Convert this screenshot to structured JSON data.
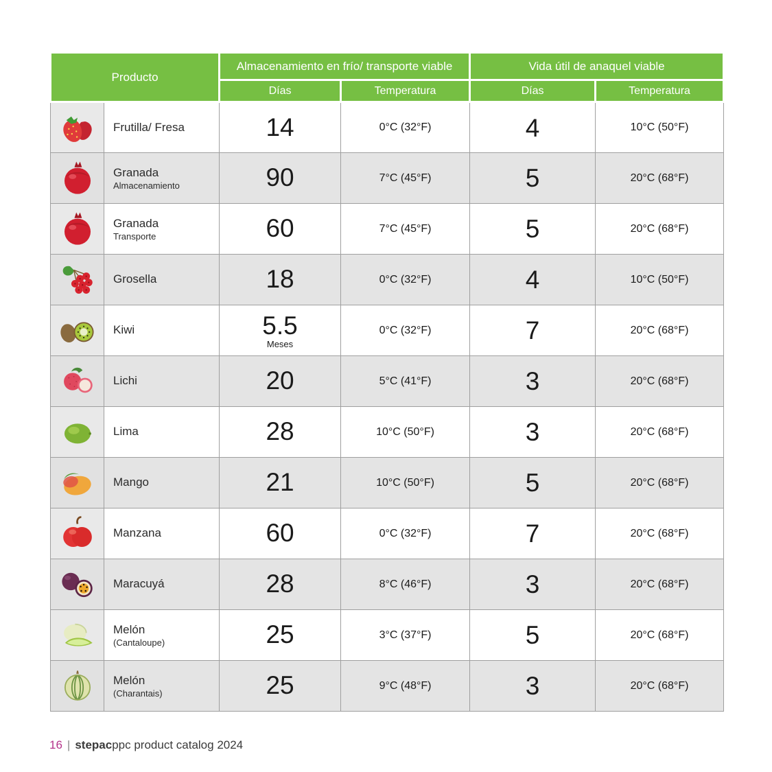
{
  "colors": {
    "header_green": "#76bf43",
    "row_alt_gray": "#e4e4e4",
    "image_cell_gray": "#e9e9e9",
    "footer_accent": "#b5338a"
  },
  "table": {
    "headers": {
      "product": "Producto",
      "storage_group": "Almacenamiento en frío/ transporte viable",
      "shelf_group": "Vida útil de anaquel viable",
      "days": "Días",
      "temperature": "Temperatura"
    },
    "rows": [
      {
        "icon": "strawberry-icon",
        "name": "Frutilla/ Fresa",
        "subname": "",
        "storage_days": "14",
        "storage_days_unit": "",
        "storage_temp": "0°C (32°F)",
        "shelf_days": "4",
        "shelf_temp": "10°C (50°F)"
      },
      {
        "icon": "pomegranate-icon",
        "name": "Granada",
        "subname": "Almacenamiento",
        "storage_days": "90",
        "storage_days_unit": "",
        "storage_temp": "7°C (45°F)",
        "shelf_days": "5",
        "shelf_temp": "20°C (68°F)"
      },
      {
        "icon": "pomegranate-icon",
        "name": "Granada",
        "subname": "Transporte",
        "storage_days": "60",
        "storage_days_unit": "",
        "storage_temp": "7°C (45°F)",
        "shelf_days": "5",
        "shelf_temp": "20°C (68°F)"
      },
      {
        "icon": "currant-icon",
        "name": "Grosella",
        "subname": "",
        "storage_days": "18",
        "storage_days_unit": "",
        "storage_temp": "0°C (32°F)",
        "shelf_days": "4",
        "shelf_temp": "10°C (50°F)"
      },
      {
        "icon": "kiwi-icon",
        "name": "Kiwi",
        "subname": "",
        "storage_days": "5.5",
        "storage_days_unit": "Meses",
        "storage_temp": "0°C (32°F)",
        "shelf_days": "7",
        "shelf_temp": "20°C (68°F)"
      },
      {
        "icon": "lychee-icon",
        "name": "Lichi",
        "subname": "",
        "storage_days": "20",
        "storage_days_unit": "",
        "storage_temp": "5°C (41°F)",
        "shelf_days": "3",
        "shelf_temp": "20°C (68°F)"
      },
      {
        "icon": "lime-icon",
        "name": "Lima",
        "subname": "",
        "storage_days": "28",
        "storage_days_unit": "",
        "storage_temp": "10°C (50°F)",
        "shelf_days": "3",
        "shelf_temp": "20°C (68°F)"
      },
      {
        "icon": "mango-icon",
        "name": "Mango",
        "subname": "",
        "storage_days": "21",
        "storage_days_unit": "",
        "storage_temp": "10°C (50°F)",
        "shelf_days": "5",
        "shelf_temp": "20°C (68°F)"
      },
      {
        "icon": "apple-icon",
        "name": "Manzana",
        "subname": "",
        "storage_days": "60",
        "storage_days_unit": "",
        "storage_temp": "0°C (32°F)",
        "shelf_days": "7",
        "shelf_temp": "20°C (68°F)"
      },
      {
        "icon": "passion-fruit-icon",
        "name": "Maracuyá",
        "subname": "",
        "storage_days": "28",
        "storage_days_unit": "",
        "storage_temp": "8°C (46°F)",
        "shelf_days": "3",
        "shelf_temp": "20°C (68°F)"
      },
      {
        "icon": "melon-cantaloupe-icon",
        "name": "Melón",
        "subname": "(Cantaloupe)",
        "storage_days": "25",
        "storage_days_unit": "",
        "storage_temp": "3°C (37°F)",
        "shelf_days": "5",
        "shelf_temp": "20°C (68°F)"
      },
      {
        "icon": "melon-charantais-icon",
        "name": "Melón",
        "subname": "(Charantais)",
        "storage_days": "25",
        "storage_days_unit": "",
        "storage_temp": "9°C (48°F)",
        "shelf_days": "3",
        "shelf_temp": "20°C (68°F)"
      }
    ]
  },
  "footer": {
    "page_number": "16",
    "separator": "|",
    "brand_bold": "stepac",
    "brand_rest": "ppc product catalog 2024"
  }
}
